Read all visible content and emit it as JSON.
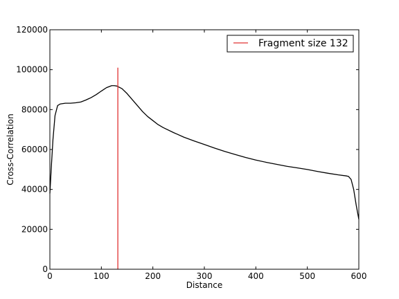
{
  "chart_data": {
    "type": "line",
    "title": "",
    "xlabel": "Distance",
    "ylabel": "Cross-Correlation",
    "xlim": [
      0,
      600
    ],
    "ylim": [
      0,
      120000
    ],
    "xticks": [
      0,
      100,
      200,
      300,
      400,
      500,
      600
    ],
    "yticks": [
      0,
      20000,
      40000,
      60000,
      80000,
      100000,
      120000
    ],
    "xtick_labels": [
      "0",
      "100",
      "200",
      "300",
      "400",
      "500",
      "600"
    ],
    "ytick_labels": [
      "0",
      "20000",
      "40000",
      "60000",
      "80000",
      "100000",
      "120000"
    ],
    "grid": false,
    "legend_position": "top-right",
    "series": [
      {
        "color": "#000000",
        "x": [
          0,
          3,
          6,
          10,
          15,
          20,
          30,
          40,
          50,
          60,
          70,
          80,
          90,
          100,
          110,
          120,
          125,
          130,
          140,
          150,
          160,
          170,
          180,
          190,
          200,
          210,
          220,
          240,
          260,
          280,
          300,
          320,
          340,
          360,
          380,
          400,
          420,
          440,
          460,
          480,
          500,
          520,
          540,
          560,
          575,
          580,
          585,
          590,
          595,
          600
        ],
        "y": [
          38000,
          52000,
          65000,
          77000,
          82000,
          82800,
          83200,
          83200,
          83400,
          83800,
          84800,
          86000,
          87500,
          89300,
          91000,
          92000,
          92000,
          91800,
          90500,
          88000,
          85000,
          82000,
          79000,
          76500,
          74500,
          72500,
          71000,
          68500,
          66200,
          64300,
          62500,
          60700,
          59000,
          57500,
          56000,
          54700,
          53600,
          52600,
          51600,
          50800,
          50000,
          49000,
          48100,
          47300,
          46800,
          46500,
          45000,
          40000,
          32000,
          25000
        ]
      },
      {
        "name": "Fragment size 132",
        "color": "#e03030",
        "type": "vline",
        "x": [
          132,
          132
        ],
        "y": [
          0,
          101000
        ]
      }
    ]
  }
}
